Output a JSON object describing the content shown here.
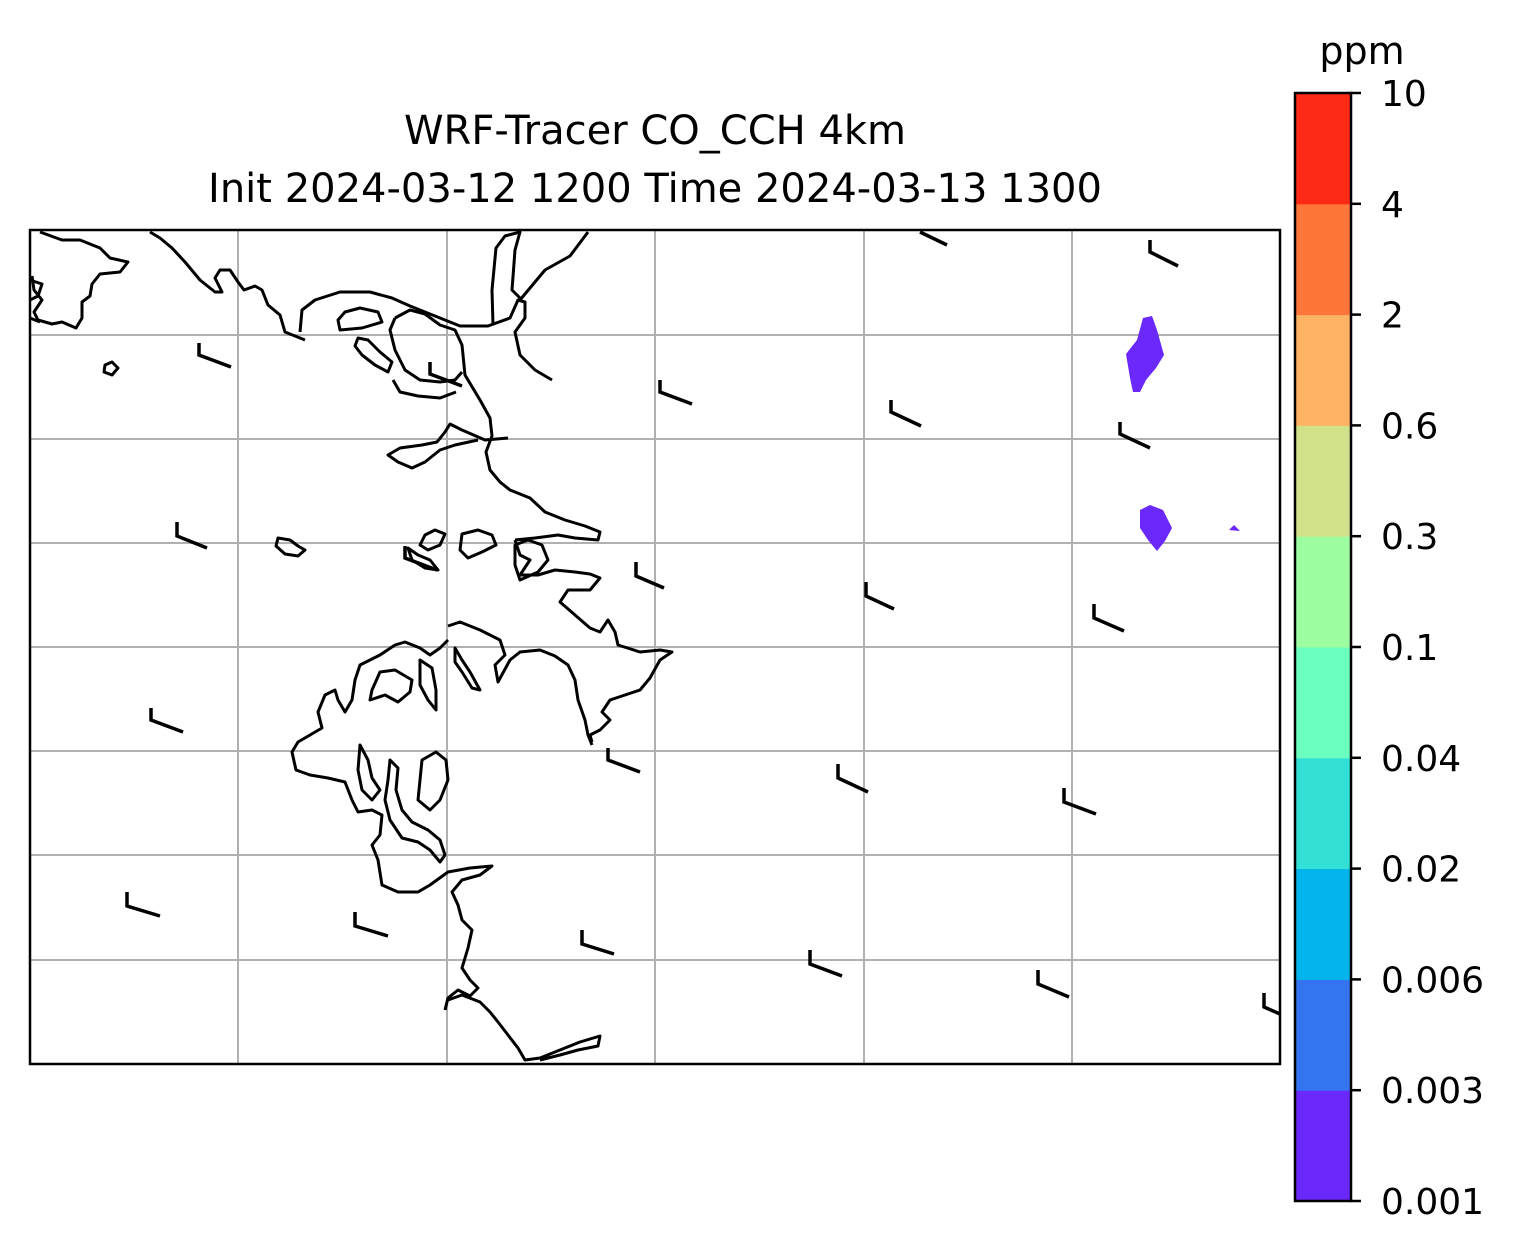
{
  "title_line1": "WRF-Tracer CO_CCH 4km",
  "title_line2": "Init 2024-03-12 1200 Time 2024-03-13 1300",
  "colorbar": {
    "unit": "ppm",
    "levels": [
      "0.001",
      "0.003",
      "0.006",
      "0.02",
      "0.04",
      "0.1",
      "0.3",
      "0.6",
      "2",
      "4",
      "10"
    ],
    "colors": [
      "#6a28fb",
      "#3574f0",
      "#01b4ec",
      "#32e0d6",
      "#6bffbf",
      "#9cfea1",
      "#cfe289",
      "#feb264",
      "#ff763b",
      "#ff2a16"
    ]
  },
  "map": {
    "field": "CO_CCH tracer concentration",
    "shaded_areas": [
      {
        "level_band": "0.001-0.003",
        "color": "#6a28fb"
      },
      {
        "level_band": "0.001-0.003",
        "color": "#6a28fb"
      },
      {
        "level_band": "0.001-0.003",
        "color": "#6a28fb"
      }
    ],
    "gridlines": true,
    "wind_barbs": true,
    "coastlines": true
  }
}
